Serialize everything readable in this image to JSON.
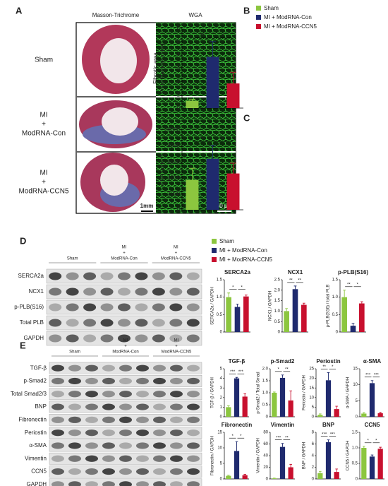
{
  "panel_labels": [
    "A",
    "B",
    "C",
    "D",
    "E"
  ],
  "panel_a": {
    "column_headers": [
      "Masson-Trichrome",
      "WGA"
    ],
    "row_labels": [
      [
        "Sham"
      ],
      [
        "MI",
        "+",
        "ModRNA-Con"
      ],
      [
        "MI",
        "+",
        "ModRNA-CCN5"
      ]
    ],
    "scale_bars": [
      "1mm",
      "50 µm"
    ]
  },
  "legends": [
    {
      "series": [
        {
          "name": "Sham",
          "color": "#8cc63f"
        },
        {
          "name": "MI + ModRNA-Con",
          "color": "#1f2a6e"
        },
        {
          "name": "MI + ModRNA-CCN5",
          "color": "#c8102e"
        }
      ]
    },
    {
      "series": [
        {
          "name": "Sham",
          "color": "#8cc63f"
        },
        {
          "name": "MI + ModRNA-Con",
          "color": "#1f2a6e"
        },
        {
          "name": "MI + ModRNA-CCN5",
          "color": "#c8102e"
        }
      ]
    }
  ],
  "blots": [
    {
      "groups": [
        [
          "Sham"
        ],
        [
          "MI",
          "+",
          "ModRNA-Con"
        ],
        [
          "MI",
          "+",
          "ModRNA-CCN5"
        ]
      ],
      "rows": [
        "SERCA2a",
        "NCX1",
        "p-PLB(S16)",
        "Total PLB",
        "GAPDH"
      ]
    },
    {
      "groups": [
        [
          "Sham"
        ],
        [
          "MI",
          "+",
          "ModRNA-Con"
        ],
        [
          "MI",
          "+",
          "ModRNA-CCN5"
        ]
      ],
      "rows": [
        "TGF-β",
        "p-Smad2",
        "Total Smad2/3",
        "BNP",
        "Fibronectin",
        "Periostin",
        "α-SMA",
        "Vimentin",
        "CCN5",
        "GAPDH"
      ]
    }
  ],
  "chart_data": [
    {
      "type": "bar",
      "y_label": [
        "Fibrotic area",
        "(% of Remote zone)"
      ],
      "values": [
        0.55,
        3.85,
        1.85
      ],
      "errors": [
        0.12,
        1.15,
        0.85
      ],
      "colors": [
        "#8cc63f",
        "#1f2a6e",
        "#c8102e"
      ],
      "ylim": [
        0,
        6
      ],
      "yticks": [
        0,
        1,
        2,
        3,
        4,
        5,
        6
      ],
      "annotations": [
        "**",
        "*"
      ]
    },
    {
      "type": "bar",
      "y_label": [
        "CSA (mm⁻²)"
      ],
      "values": [
        3750,
        6400,
        4550
      ],
      "errors": [
        1450,
        1700,
        1300
      ],
      "colors": [
        "#8cc63f",
        "#1f2a6e",
        "#c8102e"
      ],
      "ylim": [
        0,
        10000
      ],
      "yticks": [
        0,
        2000,
        4000,
        6000,
        8000,
        10000
      ],
      "annotations": [
        "*",
        "*"
      ]
    },
    {
      "type": "bar",
      "title": "SERCA2a",
      "y_label": [
        "SERCA2a / GAPDH"
      ],
      "values": [
        1.0,
        0.72,
        1.02
      ],
      "errors": [
        0.12,
        0.08,
        0.04
      ],
      "colors": [
        "#8cc63f",
        "#1f2a6e",
        "#c8102e"
      ],
      "ylim": [
        0,
        1.5
      ],
      "yticks": [
        0,
        0.5,
        {
          "value": 1,
          "label": "1.0"
        },
        1.5
      ],
      "annotations": [
        "*",
        "*"
      ]
    },
    {
      "type": "bar",
      "title": "NCX1",
      "y_label": [
        "NCX1 / GAPDH"
      ],
      "values": [
        1.0,
        2.05,
        1.3
      ],
      "errors": [
        0.12,
        0.15,
        0.08
      ],
      "colors": [
        "#8cc63f",
        "#1f2a6e",
        "#c8102e"
      ],
      "ylim": [
        0,
        2.5
      ],
      "yticks": [
        0,
        0.5,
        {
          "value": 1,
          "label": "1.0"
        },
        1.5,
        {
          "value": 2,
          "label": "2.0"
        },
        2.5
      ],
      "annotations": [
        "**",
        "**"
      ]
    },
    {
      "type": "bar",
      "title": "p-PLB(S16)",
      "y_label": [
        "p-PLB(S16) / total PLB"
      ],
      "values": [
        1.0,
        0.18,
        0.82
      ],
      "errors": [
        0.2,
        0.07,
        0.05
      ],
      "colors": [
        "#8cc63f",
        "#1f2a6e",
        "#c8102e"
      ],
      "ylim": [
        0,
        1.5
      ],
      "yticks": [
        0,
        0.5,
        {
          "value": 1,
          "label": "1.0"
        },
        1.5
      ],
      "annotations": [
        "**",
        "*"
      ]
    },
    {
      "type": "bar",
      "title": "TGF-β",
      "y_label": [
        "TGF-β / GAPDH"
      ],
      "values": [
        1,
        4.0,
        2.1
      ],
      "errors": [
        0.15,
        0.1,
        0.3
      ],
      "colors": [
        "#8cc63f",
        "#1f2a6e",
        "#c8102e"
      ],
      "ylim": [
        0,
        5
      ],
      "yticks": [
        0,
        1,
        2,
        3,
        4,
        5
      ],
      "annotations": [
        "***",
        "***"
      ]
    },
    {
      "type": "bar",
      "title": "p-Smad2",
      "y_label": [
        "p-Smad2 / Total Smad"
      ],
      "values": [
        1.0,
        1.62,
        0.68
      ],
      "errors": [
        0.03,
        0.12,
        0.4
      ],
      "colors": [
        "#8cc63f",
        "#1f2a6e",
        "#c8102e"
      ],
      "ylim": [
        0,
        2
      ],
      "yticks": [
        0,
        0.5,
        {
          "value": 1,
          "label": "1.0"
        },
        1.5,
        {
          "value": 2,
          "label": "2.0"
        }
      ],
      "annotations": [
        "*",
        "**"
      ]
    },
    {
      "type": "bar",
      "title": "Periostin",
      "y_label": [
        "Periostin / GAPDH"
      ],
      "values": [
        1,
        19,
        4
      ],
      "errors": [
        0.5,
        4,
        1.5
      ],
      "colors": [
        "#8cc63f",
        "#1f2a6e",
        "#c8102e"
      ],
      "ylim": [
        0,
        25
      ],
      "yticks": [
        0,
        5,
        10,
        15,
        20,
        25
      ],
      "annotations": [
        "**",
        "*"
      ]
    },
    {
      "type": "bar",
      "title": "α-SMA",
      "y_label": [
        "α-SMA / GAPDH"
      ],
      "values": [
        1,
        10.5,
        1.1
      ],
      "errors": [
        0.3,
        0.8,
        0.3
      ],
      "colors": [
        "#8cc63f",
        "#1f2a6e",
        "#c8102e"
      ],
      "ylim": [
        0,
        15
      ],
      "yticks": [
        0,
        5,
        10,
        15
      ],
      "annotations": [
        "***",
        "***"
      ]
    },
    {
      "type": "bar",
      "title": "Fibronectin",
      "y_label": [
        "Fibronectin / GAPDH"
      ],
      "values": [
        1,
        9,
        1.2
      ],
      "errors": [
        0.2,
        3,
        0.3
      ],
      "colors": [
        "#8cc63f",
        "#1f2a6e",
        "#c8102e"
      ],
      "ylim": [
        0,
        15
      ],
      "yticks": [
        0,
        5,
        10,
        15
      ],
      "annotations": [
        "*",
        "*"
      ]
    },
    {
      "type": "bar",
      "title": "Vimentin",
      "y_label": [
        "Vimentin / GAPDH"
      ],
      "values": [
        1,
        55,
        20
      ],
      "errors": [
        0.5,
        6,
        5
      ],
      "colors": [
        "#8cc63f",
        "#1f2a6e",
        "#c8102e"
      ],
      "ylim": [
        0,
        80
      ],
      "yticks": [
        0,
        20,
        40,
        60,
        80
      ],
      "annotations": [
        "***",
        "**"
      ]
    },
    {
      "type": "bar",
      "title": "BNP",
      "y_label": [
        "BNP / GAPDH"
      ],
      "values": [
        1,
        6.3,
        1.2
      ],
      "errors": [
        0.3,
        0.4,
        0.5
      ],
      "colors": [
        "#8cc63f",
        "#1f2a6e",
        "#c8102e"
      ],
      "ylim": [
        0,
        8
      ],
      "yticks": [
        0,
        2,
        4,
        6,
        8
      ],
      "annotations": [
        "***",
        "***"
      ]
    },
    {
      "type": "bar",
      "title": "CCN5",
      "y_label": [
        "CCN5 / GAPDH"
      ],
      "values": [
        1,
        0.72,
        0.97
      ],
      "errors": [
        0.05,
        0.05,
        0.05
      ],
      "colors": [
        "#8cc63f",
        "#1f2a6e",
        "#c8102e"
      ],
      "ylim": [
        0,
        1.5
      ],
      "yticks": [
        0,
        0.5,
        {
          "value": 1,
          "label": "1.0"
        },
        1.5
      ],
      "annotations": [
        "*",
        "*"
      ]
    }
  ]
}
